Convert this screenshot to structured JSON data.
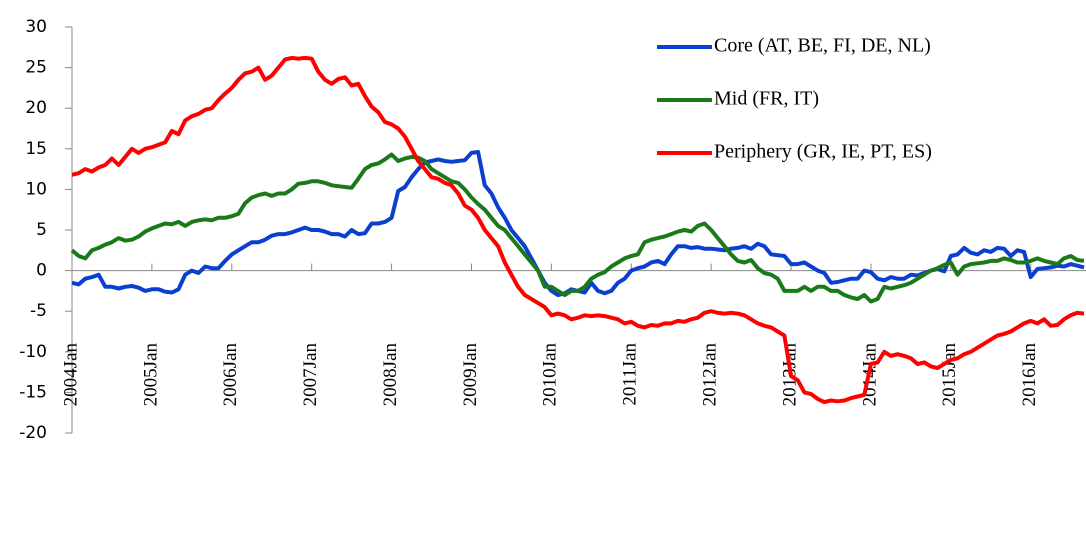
{
  "chart_data": {
    "type": "line",
    "categories": [
      "2004Jan",
      null,
      null,
      null,
      null,
      null,
      null,
      null,
      null,
      null,
      null,
      null,
      "2005Jan",
      null,
      null,
      null,
      null,
      null,
      null,
      null,
      null,
      null,
      null,
      null,
      "2006Jan",
      null,
      null,
      null,
      null,
      null,
      null,
      null,
      null,
      null,
      null,
      null,
      "2007Jan",
      null,
      null,
      null,
      null,
      null,
      null,
      null,
      null,
      null,
      null,
      null,
      "2008Jan",
      null,
      null,
      null,
      null,
      null,
      null,
      null,
      null,
      null,
      null,
      null,
      "2009Jan",
      null,
      null,
      null,
      null,
      null,
      null,
      null,
      null,
      null,
      null,
      null,
      "2010Jan",
      null,
      null,
      null,
      null,
      null,
      null,
      null,
      null,
      null,
      null,
      null,
      "2011Jan",
      null,
      null,
      null,
      null,
      null,
      null,
      null,
      null,
      null,
      null,
      null,
      "2012Jan",
      null,
      null,
      null,
      null,
      null,
      null,
      null,
      null,
      null,
      null,
      null,
      "2013Jan",
      null,
      null,
      null,
      null,
      null,
      null,
      null,
      null,
      null,
      null,
      null,
      "2014Jan",
      null,
      null,
      null,
      null,
      null,
      null,
      null,
      null,
      null,
      null,
      null,
      "2015Jan",
      null,
      null,
      null,
      null,
      null,
      null,
      null,
      null,
      null,
      null,
      null,
      "2016Jan",
      null,
      null,
      null,
      null,
      null,
      null,
      null,
      null
    ],
    "series": [
      {
        "name": "Core (AT, BE, FI, DE, NL)",
        "color": "#0a3fcf",
        "values": [
          -1.5,
          -1.7,
          -1,
          -0.8,
          -0.5,
          -2,
          -2,
          -2.2,
          -2,
          -1.9,
          -2.1,
          -2.5,
          -2.3,
          -2.3,
          -2.6,
          -2.7,
          -2.3,
          -0.5,
          0,
          -0.3,
          0.5,
          0.3,
          0.3,
          1.2,
          2,
          2.5,
          3,
          3.5,
          3.5,
          3.8,
          4.3,
          4.5,
          4.5,
          4.7,
          5,
          5.3,
          5,
          5,
          4.8,
          4.5,
          4.5,
          4.2,
          5,
          4.5,
          4.6,
          5.8,
          5.8,
          6,
          6.5,
          9.8,
          10.3,
          11.5,
          12.5,
          13.3,
          13.5,
          13.7,
          13.5,
          13.4,
          13.5,
          13.6,
          14.5,
          14.6,
          10.5,
          9.5,
          7.8,
          6.5,
          5,
          4,
          3,
          1.5,
          0,
          -1.5,
          -2.5,
          -3,
          -2.8,
          -2.3,
          -2.5,
          -2.7,
          -1.5,
          -2.5,
          -2.8,
          -2.5,
          -1.5,
          -1,
          0,
          0.3,
          0.5,
          1,
          1.2,
          0.8,
          2,
          3,
          3,
          2.8,
          2.9,
          2.7,
          2.7,
          2.6,
          2.5,
          2.7,
          2.8,
          3,
          2.7,
          3.3,
          3,
          2,
          1.9,
          1.8,
          0.8,
          0.8,
          1,
          0.5,
          0,
          -0.3,
          -1.5,
          -1.4,
          -1.2,
          -1,
          -1,
          0,
          -0.2,
          -1,
          -1.2,
          -0.8,
          -1,
          -1,
          -0.5,
          -0.6,
          -0.3,
          0,
          0.2,
          -0.1,
          1.8,
          2,
          2.8,
          2.2,
          2,
          2.5,
          2.3,
          2.8,
          2.7,
          1.8,
          2.5,
          2.3,
          -0.8,
          0.2,
          0.3,
          0.4,
          0.6,
          0.5,
          0.8,
          0.6,
          0.4
        ]
      },
      {
        "name": "Mid (FR, IT)",
        "color": "#1a7a1a",
        "values": [
          2.5,
          1.8,
          1.5,
          2.5,
          2.8,
          3.2,
          3.5,
          4,
          3.7,
          3.8,
          4.2,
          4.8,
          5.2,
          5.5,
          5.8,
          5.7,
          6,
          5.5,
          6,
          6.2,
          6.3,
          6.2,
          6.5,
          6.5,
          6.7,
          7,
          8.3,
          9,
          9.3,
          9.5,
          9.2,
          9.5,
          9.5,
          10,
          10.7,
          10.8,
          11,
          11,
          10.8,
          10.5,
          10.4,
          10.3,
          10.2,
          11.3,
          12.5,
          13,
          13.2,
          13.7,
          14.3,
          13.5,
          13.8,
          14,
          13.9,
          13.5,
          12.5,
          12,
          11.5,
          11,
          10.8,
          10,
          9,
          8.2,
          7.5,
          6.5,
          5.5,
          5,
          4,
          3,
          2,
          1,
          0,
          -2,
          -2,
          -2.5,
          -3,
          -2.5,
          -2.5,
          -2,
          -1,
          -0.5,
          -0.2,
          0.5,
          1,
          1.5,
          1.8,
          2,
          3.5,
          3.8,
          4,
          4.2,
          4.5,
          4.8,
          5,
          4.8,
          5.5,
          5.8,
          5,
          4,
          3,
          2,
          1.2,
          1,
          1.3,
          0.3,
          -0.3,
          -0.5,
          -1,
          -2.5,
          -2.5,
          -2.5,
          -2,
          -2.5,
          -2,
          -2,
          -2.5,
          -2.5,
          -3,
          -3.3,
          -3.5,
          -3,
          -3.8,
          -3.5,
          -2,
          -2.2,
          -2,
          -1.8,
          -1.5,
          -1,
          -0.5,
          0,
          0.3,
          0.7,
          1,
          -0.5,
          0.5,
          0.8,
          0.9,
          1,
          1.2,
          1.2,
          1.5,
          1.3,
          1,
          1,
          1.2,
          1.5,
          1.2,
          1,
          0.8,
          1.5,
          1.8,
          1.3,
          1.2
        ]
      },
      {
        "name": "Periphery (GR, IE, PT, ES)",
        "color": "#ff0000",
        "values": [
          11.8,
          12,
          12.5,
          12.2,
          12.7,
          13,
          13.8,
          13,
          14,
          15,
          14.5,
          15,
          15.2,
          15.5,
          15.8,
          17.2,
          16.8,
          18.5,
          19,
          19.3,
          19.8,
          20,
          21,
          21.8,
          22.5,
          23.5,
          24.3,
          24.5,
          25,
          23.5,
          24,
          25,
          26,
          26.2,
          26.1,
          26.2,
          26.1,
          24.5,
          23.5,
          23,
          23.6,
          23.8,
          22.8,
          23,
          21.5,
          20.2,
          19.5,
          18.3,
          18,
          17.5,
          16.5,
          15,
          13.5,
          12.5,
          11.5,
          11.3,
          10.8,
          10.5,
          9.5,
          8,
          7.5,
          6.5,
          5,
          4,
          3,
          1,
          -0.5,
          -2,
          -3,
          -3.5,
          -4,
          -4.5,
          -5.5,
          -5.3,
          -5.5,
          -6,
          -5.8,
          -5.5,
          -5.6,
          -5.5,
          -5.6,
          -5.8,
          -6,
          -6.5,
          -6.3,
          -6.8,
          -7,
          -6.7,
          -6.8,
          -6.5,
          -6.5,
          -6.2,
          -6.3,
          -6,
          -5.8,
          -5.2,
          -5,
          -5.2,
          -5.3,
          -5.2,
          -5.3,
          -5.5,
          -6,
          -6.5,
          -6.8,
          -7,
          -7.5,
          -8,
          -13,
          -13.5,
          -15,
          -15.2,
          -15.8,
          -16.2,
          -16,
          -16.1,
          -16,
          -15.7,
          -15.5,
          -15.3,
          -11.5,
          -11.3,
          -10,
          -10.5,
          -10.3,
          -10.5,
          -10.8,
          -11.5,
          -11.3,
          -11.8,
          -12,
          -11.5,
          -11,
          -10.8,
          -10.3,
          -10,
          -9.5,
          -9,
          -8.5,
          -8,
          -7.8,
          -7.5,
          -7,
          -6.5,
          -6.2,
          -6.5,
          -6,
          -6.8,
          -6.7,
          -6,
          -5.5,
          -5.2,
          -5.3
        ]
      }
    ],
    "ylim": [
      -20,
      30
    ],
    "yticks": [
      -20,
      -15,
      -10,
      -5,
      0,
      5,
      10,
      15,
      20,
      25,
      30
    ],
    "legend": "upper right"
  }
}
